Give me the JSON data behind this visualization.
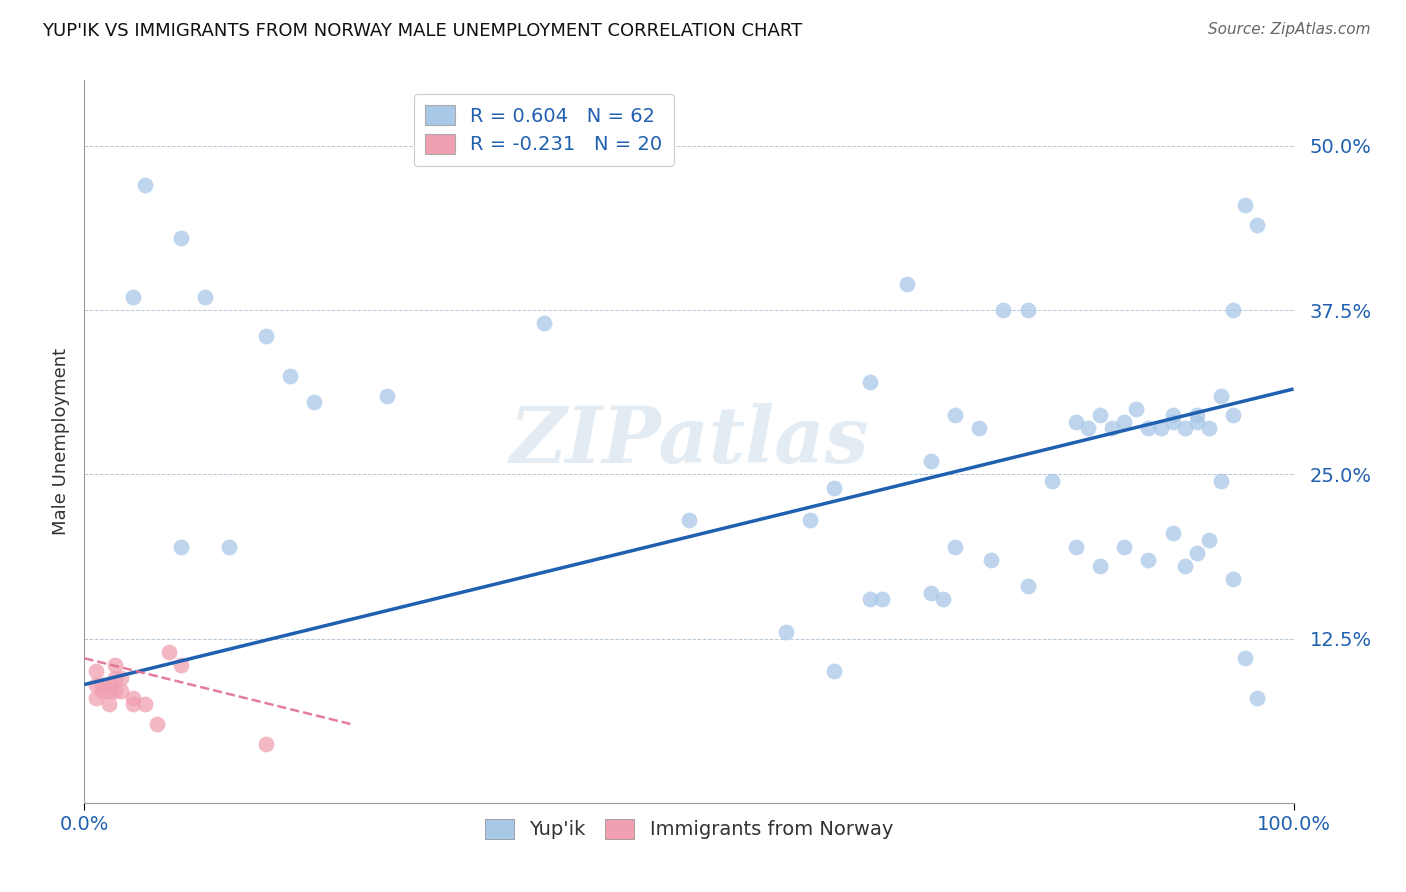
{
  "title": "YUP'IK VS IMMIGRANTS FROM NORWAY MALE UNEMPLOYMENT CORRELATION CHART",
  "source": "Source: ZipAtlas.com",
  "ylabel": "Male Unemployment",
  "ytick_labels": [
    "12.5%",
    "25.0%",
    "37.5%",
    "50.0%"
  ],
  "ytick_values": [
    0.125,
    0.25,
    0.375,
    0.5
  ],
  "xlim": [
    0.0,
    1.0
  ],
  "ylim": [
    0.0,
    0.55
  ],
  "legend_r1": "R = 0.604",
  "legend_n1": "N = 62",
  "legend_r2": "R = -0.231",
  "legend_n2": "N = 20",
  "color_yupik": "#a8c8e8",
  "color_norway": "#f0a0b0",
  "color_line_yupik": "#2060b0",
  "color_line_norway": "#e07090",
  "background_color": "#ffffff",
  "watermark_text": "ZIPatlas",
  "yupik_x": [
    0.04,
    0.1,
    0.15,
    0.17,
    0.08,
    0.12,
    0.19,
    0.25,
    0.38,
    0.5,
    0.6,
    0.62,
    0.65,
    0.68,
    0.7,
    0.72,
    0.74,
    0.76,
    0.78,
    0.8,
    0.82,
    0.83,
    0.84,
    0.85,
    0.86,
    0.87,
    0.88,
    0.89,
    0.9,
    0.9,
    0.91,
    0.92,
    0.92,
    0.93,
    0.94,
    0.94,
    0.95,
    0.95,
    0.96,
    0.97,
    0.58,
    0.62,
    0.65,
    0.66,
    0.7,
    0.71,
    0.72,
    0.75,
    0.78,
    0.82,
    0.84,
    0.86,
    0.88,
    0.9,
    0.91,
    0.92,
    0.93,
    0.95,
    0.96,
    0.97,
    0.05,
    0.08
  ],
  "yupik_y": [
    0.385,
    0.385,
    0.355,
    0.325,
    0.195,
    0.195,
    0.305,
    0.31,
    0.365,
    0.215,
    0.215,
    0.24,
    0.32,
    0.395,
    0.26,
    0.295,
    0.285,
    0.375,
    0.375,
    0.245,
    0.29,
    0.285,
    0.295,
    0.285,
    0.29,
    0.3,
    0.285,
    0.285,
    0.295,
    0.29,
    0.285,
    0.29,
    0.295,
    0.285,
    0.31,
    0.245,
    0.295,
    0.375,
    0.455,
    0.44,
    0.13,
    0.1,
    0.155,
    0.155,
    0.16,
    0.155,
    0.195,
    0.185,
    0.165,
    0.195,
    0.18,
    0.195,
    0.185,
    0.205,
    0.18,
    0.19,
    0.2,
    0.17,
    0.11,
    0.08,
    0.47,
    0.43
  ],
  "norway_x": [
    0.01,
    0.01,
    0.01,
    0.015,
    0.015,
    0.02,
    0.02,
    0.02,
    0.025,
    0.025,
    0.025,
    0.03,
    0.03,
    0.04,
    0.04,
    0.05,
    0.06,
    0.07,
    0.08,
    0.15
  ],
  "norway_y": [
    0.1,
    0.09,
    0.08,
    0.09,
    0.085,
    0.09,
    0.085,
    0.075,
    0.105,
    0.095,
    0.085,
    0.095,
    0.085,
    0.08,
    0.075,
    0.075,
    0.06,
    0.115,
    0.105,
    0.045
  ],
  "yupik_line_x": [
    0.0,
    1.0
  ],
  "yupik_line_y": [
    0.09,
    0.315
  ],
  "norway_line_x": [
    0.0,
    0.22
  ],
  "norway_line_y": [
    0.11,
    0.06
  ]
}
